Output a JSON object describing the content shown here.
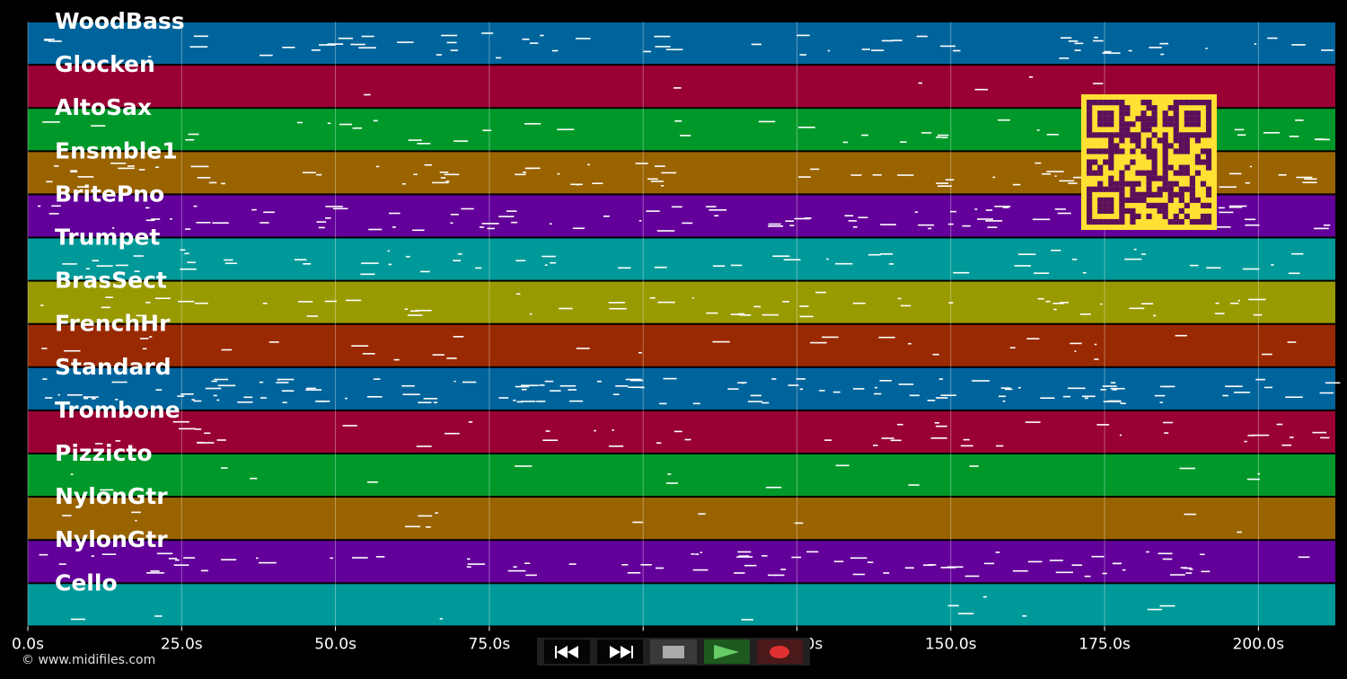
{
  "tracks": [
    {
      "name": "WoodBass",
      "color": "#00649c"
    },
    {
      "name": "Glocken",
      "color": "#990033"
    },
    {
      "name": "AltoSax",
      "color": "#009929"
    },
    {
      "name": "Ensmble1",
      "color": "#996300"
    },
    {
      "name": "BritePno",
      "color": "#630099"
    },
    {
      "name": "Trumpet",
      "color": "#009999"
    },
    {
      "name": "BrasSect",
      "color": "#999900"
    },
    {
      "name": "FrenchHr",
      "color": "#992900"
    },
    {
      "name": "Standard",
      "color": "#00649c"
    },
    {
      "name": "Trombone",
      "color": "#990033"
    },
    {
      "name": "Pizzicto",
      "color": "#009929"
    },
    {
      "name": "NylonGtr",
      "color": "#996300"
    },
    {
      "name": "NylonGtr",
      "color": "#630099"
    },
    {
      "name": "Cello",
      "color": "#009999"
    }
  ],
  "timeline": {
    "ticks": [
      "0.0s",
      "25.0s",
      "50.0s",
      "75.0s",
      "100.0s",
      "125.0s",
      "150.0s",
      "175.0s",
      "200.0s"
    ],
    "tick_values": [
      0,
      25,
      50,
      75,
      100,
      125,
      150,
      175,
      200
    ],
    "duration": 212.5
  },
  "copyright": "© www.midifiles.com",
  "transport": {
    "rewind": "rewind-icon",
    "forward": "fast-forward-icon",
    "stop": "stop-icon",
    "play": "play-icon",
    "record": "record-icon"
  },
  "qr": {
    "foreground": "#5a0f5a",
    "background": "#ffe033"
  }
}
